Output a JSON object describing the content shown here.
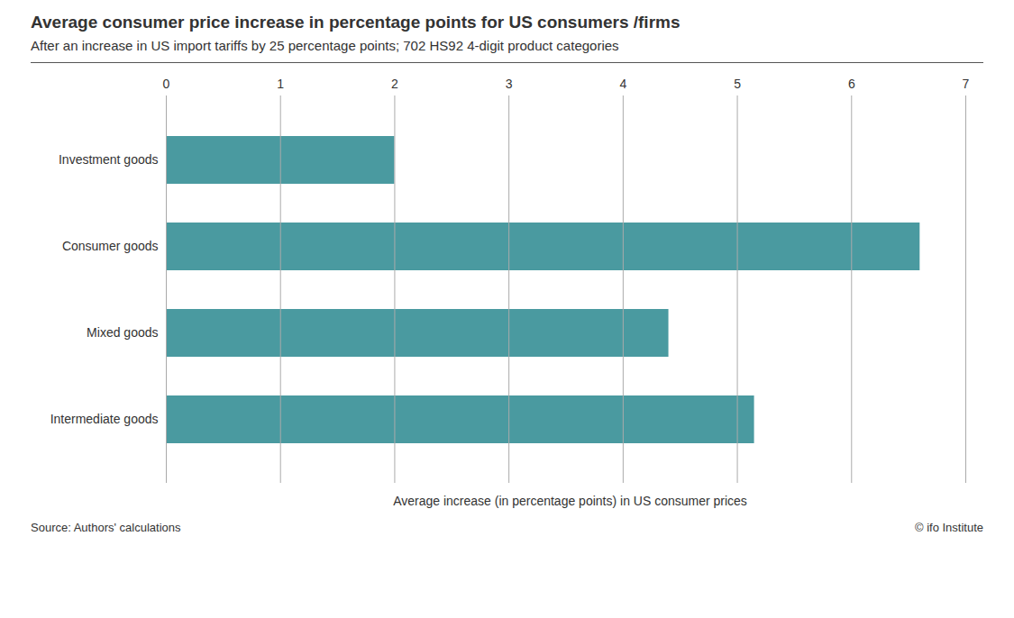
{
  "chart_data": {
    "type": "bar",
    "orientation": "horizontal",
    "title": "Average consumer price increase in percentage points for US consumers /firms",
    "subtitle": "After an increase in US import tariffs by 25 percentage points; 702 HS92 4-digit product categories",
    "categories": [
      "Investment goods",
      "Consumer goods",
      "Mixed goods",
      "Intermediate goods"
    ],
    "values": [
      2.0,
      6.6,
      4.4,
      5.15
    ],
    "color": "#4a9aa0",
    "xlabel": "Average increase (in percentage points) in US consumer prices",
    "xlim": [
      0,
      7
    ],
    "xticks": [
      0,
      1,
      2,
      3,
      4,
      5,
      6,
      7
    ],
    "grid": true,
    "annotations": [
      "Source: Authors' calculations",
      "© ifo Institute"
    ]
  }
}
